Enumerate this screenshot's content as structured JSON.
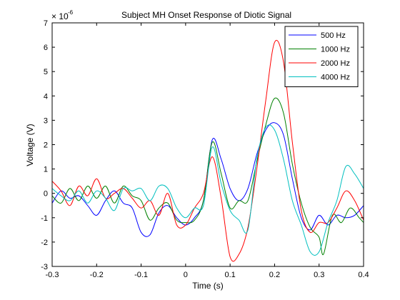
{
  "chart_data": {
    "type": "line",
    "title": "Subject MH Onset Response of Diotic Signal",
    "xlabel": "Time (s)",
    "ylabel": "Voltage (V)",
    "y_scale_factor_base": "× 10",
    "y_scale_factor_exponent": "-6",
    "xlim": [
      -0.3,
      0.4
    ],
    "ylim": [
      -3,
      7
    ],
    "x_ticks": [
      -0.3,
      -0.2,
      -0.1,
      0,
      0.1,
      0.2,
      0.3,
      0.4
    ],
    "x_tick_labels": [
      "-0.3",
      "-0.2",
      "-0.1",
      "0",
      "0.1",
      "0.2",
      "0.3",
      "0.4"
    ],
    "y_ticks": [
      -3,
      -2,
      -1,
      0,
      1,
      2,
      3,
      4,
      5,
      6,
      7
    ],
    "y_tick_labels": [
      "-3",
      "-2",
      "-1",
      "0",
      "1",
      "2",
      "3",
      "4",
      "5",
      "6",
      "7"
    ],
    "grid": false,
    "legend_position": "top-right",
    "series": [
      {
        "name": "500 Hz",
        "color": "#0000ff",
        "points": [
          [
            -0.3,
            -0.4
          ],
          [
            -0.28,
            0.1
          ],
          [
            -0.26,
            -0.2
          ],
          [
            -0.24,
            -0.1
          ],
          [
            -0.22,
            -0.5
          ],
          [
            -0.2,
            -0.9
          ],
          [
            -0.18,
            -0.3
          ],
          [
            -0.16,
            0.1
          ],
          [
            -0.14,
            -0.4
          ],
          [
            -0.12,
            -0.6
          ],
          [
            -0.1,
            -1.6
          ],
          [
            -0.08,
            -1.7
          ],
          [
            -0.06,
            -0.8
          ],
          [
            -0.04,
            -0.5
          ],
          [
            -0.02,
            -1.0
          ],
          [
            0.0,
            -1.3
          ],
          [
            0.02,
            -1.0
          ],
          [
            0.04,
            -0.3
          ],
          [
            0.06,
            2.2
          ],
          [
            0.08,
            1.4
          ],
          [
            0.1,
            0.2
          ],
          [
            0.12,
            -0.3
          ],
          [
            0.14,
            0.2
          ],
          [
            0.16,
            1.6
          ],
          [
            0.18,
            2.6
          ],
          [
            0.2,
            2.9
          ],
          [
            0.22,
            2.4
          ],
          [
            0.24,
            0.6
          ],
          [
            0.26,
            -1.0
          ],
          [
            0.28,
            -1.5
          ],
          [
            0.3,
            -0.9
          ],
          [
            0.32,
            -1.3
          ],
          [
            0.34,
            -0.9
          ],
          [
            0.36,
            -1.0
          ],
          [
            0.38,
            -0.9
          ],
          [
            0.4,
            -0.5
          ]
        ]
      },
      {
        "name": "1000 Hz",
        "color": "#008000",
        "points": [
          [
            -0.3,
            -0.1
          ],
          [
            -0.28,
            -0.4
          ],
          [
            -0.26,
            0.2
          ],
          [
            -0.24,
            -0.3
          ],
          [
            -0.22,
            0.3
          ],
          [
            -0.2,
            -0.2
          ],
          [
            -0.18,
            0.3
          ],
          [
            -0.16,
            -0.4
          ],
          [
            -0.14,
            0.3
          ],
          [
            -0.12,
            -0.1
          ],
          [
            -0.1,
            -0.3
          ],
          [
            -0.08,
            -1.1
          ],
          [
            -0.06,
            -0.6
          ],
          [
            -0.04,
            -0.4
          ],
          [
            -0.02,
            -1.1
          ],
          [
            0.0,
            -1.2
          ],
          [
            0.02,
            -1.1
          ],
          [
            0.04,
            -0.3
          ],
          [
            0.06,
            2.1
          ],
          [
            0.08,
            0.8
          ],
          [
            0.1,
            -0.6
          ],
          [
            0.12,
            -0.3
          ],
          [
            0.14,
            -0.3
          ],
          [
            0.16,
            1.3
          ],
          [
            0.18,
            2.8
          ],
          [
            0.2,
            3.9
          ],
          [
            0.22,
            3.3
          ],
          [
            0.24,
            1.2
          ],
          [
            0.26,
            -0.4
          ],
          [
            0.28,
            -1.4
          ],
          [
            0.3,
            -1.8
          ],
          [
            0.31,
            -2.5
          ],
          [
            0.33,
            -0.9
          ],
          [
            0.35,
            -1.2
          ],
          [
            0.37,
            -0.6
          ],
          [
            0.39,
            -1.0
          ],
          [
            0.4,
            -1.2
          ]
        ]
      },
      {
        "name": "2000 Hz",
        "color": "#ff0000",
        "points": [
          [
            -0.3,
            0.5
          ],
          [
            -0.28,
            0.1
          ],
          [
            -0.26,
            -0.5
          ],
          [
            -0.24,
            0.3
          ],
          [
            -0.22,
            -0.1
          ],
          [
            -0.2,
            0.6
          ],
          [
            -0.18,
            -0.2
          ],
          [
            -0.16,
            0.0
          ],
          [
            -0.14,
            0.2
          ],
          [
            -0.12,
            -0.2
          ],
          [
            -0.1,
            -0.6
          ],
          [
            -0.08,
            -0.3
          ],
          [
            -0.06,
            -0.9
          ],
          [
            -0.04,
            0.0
          ],
          [
            -0.02,
            -1.3
          ],
          [
            0.0,
            -1.3
          ],
          [
            0.02,
            -0.6
          ],
          [
            0.04,
            0.0
          ],
          [
            0.06,
            1.5
          ],
          [
            0.08,
            -0.2
          ],
          [
            0.1,
            -2.6
          ],
          [
            0.12,
            -2.5
          ],
          [
            0.14,
            -1.4
          ],
          [
            0.16,
            1.0
          ],
          [
            0.18,
            3.8
          ],
          [
            0.2,
            6.2
          ],
          [
            0.22,
            5.4
          ],
          [
            0.24,
            2.1
          ],
          [
            0.26,
            -0.7
          ],
          [
            0.28,
            -1.6
          ],
          [
            0.3,
            -1.2
          ],
          [
            0.32,
            -1.2
          ],
          [
            0.34,
            -0.6
          ],
          [
            0.36,
            0.1
          ],
          [
            0.38,
            -0.3
          ],
          [
            0.4,
            -1.1
          ]
        ]
      },
      {
        "name": "4000 Hz",
        "color": "#00bfbf",
        "points": [
          [
            -0.3,
            0.2
          ],
          [
            -0.28,
            -0.1
          ],
          [
            -0.26,
            -0.3
          ],
          [
            -0.24,
            0.1
          ],
          [
            -0.22,
            -0.4
          ],
          [
            -0.2,
            0.1
          ],
          [
            -0.18,
            -0.2
          ],
          [
            -0.16,
            -0.7
          ],
          [
            -0.14,
            0.2
          ],
          [
            -0.12,
            0.1
          ],
          [
            -0.1,
            0.2
          ],
          [
            -0.08,
            -0.3
          ],
          [
            -0.06,
            0.3
          ],
          [
            -0.04,
            0.2
          ],
          [
            -0.02,
            -0.6
          ],
          [
            0.0,
            -1.0
          ],
          [
            0.02,
            -0.6
          ],
          [
            0.04,
            -0.5
          ],
          [
            0.06,
            1.9
          ],
          [
            0.08,
            0.4
          ],
          [
            0.1,
            -0.7
          ],
          [
            0.12,
            -1.1
          ],
          [
            0.14,
            -1.5
          ],
          [
            0.16,
            1.4
          ],
          [
            0.18,
            2.7
          ],
          [
            0.2,
            2.6
          ],
          [
            0.22,
            1.4
          ],
          [
            0.24,
            -0.3
          ],
          [
            0.26,
            -1.3
          ],
          [
            0.28,
            -2.4
          ],
          [
            0.3,
            -2.4
          ],
          [
            0.32,
            -1.2
          ],
          [
            0.34,
            -0.3
          ],
          [
            0.36,
            1.1
          ],
          [
            0.38,
            0.8
          ],
          [
            0.4,
            0.2
          ]
        ]
      }
    ]
  }
}
